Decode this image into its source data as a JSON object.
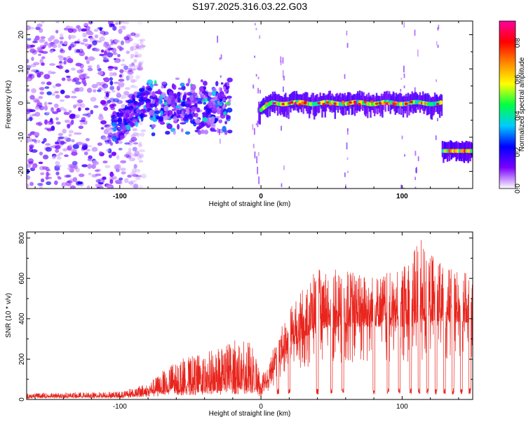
{
  "title": "S197.2025.316.03.22.G03",
  "chart_data": [
    {
      "type": "heatmap",
      "name": "spectrogram",
      "xlabel": "Height of straight line (km)",
      "ylabel": "Frequency (Hz)",
      "xlim": [
        -166,
        150
      ],
      "ylim": [
        -25,
        24
      ],
      "xticks": [
        -100,
        0,
        100
      ],
      "yticks": [
        -20,
        -10,
        0,
        10,
        20
      ],
      "colorbar": {
        "label": "Normalized spectral amplitude",
        "range": [
          0.0,
          0.92
        ],
        "ticks": [
          0.0,
          0.2,
          0.4,
          0.6,
          0.8
        ],
        "colors": [
          "#ffffff",
          "#7a00ff",
          "#0000ff",
          "#00ccff",
          "#00ff44",
          "#ffff00",
          "#ff8800",
          "#ff0000",
          "#ff00a0"
        ]
      },
      "features": [
        {
          "x_range": [
            -166,
            -95
          ],
          "freq": "broadband noise",
          "level": 0.15
        },
        {
          "x_range": [
            -105,
            -78
          ],
          "freq_start": -8,
          "freq_end": 2,
          "level": 0.35
        },
        {
          "x_range": [
            -78,
            -22
          ],
          "freq_center": -1,
          "level": 0.45
        },
        {
          "x_range": [
            0,
            128
          ],
          "freq_center": 0,
          "level": 0.85
        },
        {
          "x_range": [
            128,
            150
          ],
          "freq_center": -14,
          "level": 0.8
        }
      ]
    },
    {
      "type": "line",
      "name": "snr",
      "xlabel": "Height of straight line (km)",
      "ylabel": "SNR (10 * v/v)",
      "xlim": [
        -166,
        150
      ],
      "ylim": [
        0,
        830
      ],
      "xticks": [
        -100,
        0,
        100
      ],
      "yticks": [
        0,
        200,
        400,
        600,
        800
      ],
      "color": "#e8241c",
      "envelope": [
        {
          "x": -166,
          "base": 10,
          "peak": 30
        },
        {
          "x": -100,
          "base": 12,
          "peak": 40
        },
        {
          "x": -80,
          "base": 25,
          "peak": 80
        },
        {
          "x": -60,
          "base": 40,
          "peak": 200
        },
        {
          "x": -40,
          "base": 40,
          "peak": 230
        },
        {
          "x": -20,
          "base": 50,
          "peak": 300
        },
        {
          "x": -5,
          "base": 60,
          "peak": 280
        },
        {
          "x": 0,
          "base": 20,
          "peak": 110
        },
        {
          "x": 10,
          "base": 150,
          "peak": 280
        },
        {
          "x": 20,
          "base": 250,
          "peak": 450
        },
        {
          "x": 40,
          "base": 350,
          "peak": 650
        },
        {
          "x": 60,
          "base": 360,
          "peak": 640
        },
        {
          "x": 80,
          "base": 360,
          "peak": 620
        },
        {
          "x": 100,
          "base": 360,
          "peak": 640
        },
        {
          "x": 110,
          "base": 380,
          "peak": 820
        },
        {
          "x": 130,
          "base": 380,
          "peak": 650
        },
        {
          "x": 150,
          "base": 380,
          "peak": 640
        }
      ],
      "dips": [
        12,
        20,
        40,
        50,
        58,
        80,
        90,
        98,
        106,
        112,
        118,
        124,
        130,
        136,
        142,
        148
      ]
    }
  ]
}
